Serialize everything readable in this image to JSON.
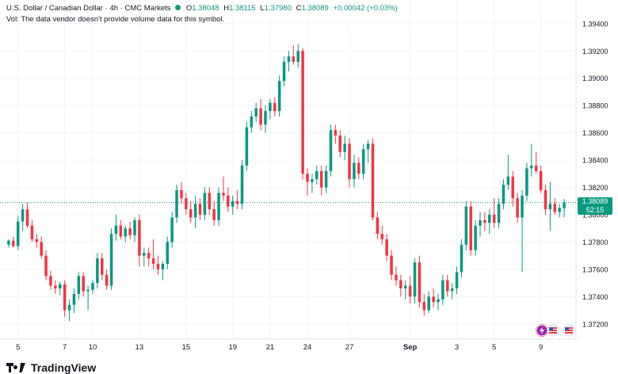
{
  "header": {
    "symbol": "U.S. Dollar / Canadian Dollar",
    "interval": "4h",
    "source": "CMC Markets",
    "open_label": "O",
    "open": "1.38048",
    "high_label": "H",
    "high": "1.38115",
    "low_label": "L",
    "low": "1.37980",
    "close_label": "C",
    "close": "1.38089",
    "change": "+0.00042 (+0.03%)",
    "volume_note": "Vol: The data vendor doesn't provide volume data for this symbol."
  },
  "price_tag": {
    "price": "1.38089",
    "countdown": "52:15"
  },
  "branding": {
    "logo_text": "TradingView"
  },
  "colors": {
    "up": "#089981",
    "down": "#f23645",
    "grid": "#f0f3fa",
    "current_line": "#089981"
  },
  "icons": [
    "tradingview-logo-icon",
    "lightning-icon",
    "flag-icon"
  ],
  "chart_data": {
    "type": "candlestick",
    "title": "U.S. Dollar / Canadian Dollar · 4h · CMC Markets",
    "xlabel": "",
    "ylabel": "",
    "ylim": [
      1.371,
      1.3955
    ],
    "y_ticks": [
      "1.39400",
      "1.39200",
      "1.39000",
      "1.38800",
      "1.38600",
      "1.38400",
      "1.38200",
      "1.38000",
      "1.37800",
      "1.37600",
      "1.37400",
      "1.37200"
    ],
    "x_ticks": [
      {
        "label": "5",
        "index": 2
      },
      {
        "label": "7",
        "index": 12
      },
      {
        "label": "10",
        "index": 18
      },
      {
        "label": "13",
        "index": 28
      },
      {
        "label": "15",
        "index": 38
      },
      {
        "label": "19",
        "index": 48
      },
      {
        "label": "21",
        "index": 56
      },
      {
        "label": "24",
        "index": 64
      },
      {
        "label": "27",
        "index": 73
      },
      {
        "label": "Sep",
        "index": 86
      },
      {
        "label": "3",
        "index": 96
      },
      {
        "label": "5",
        "index": 104
      },
      {
        "label": "9",
        "index": 114
      }
    ],
    "current_price": 1.38089,
    "grid": true,
    "candles": [
      [
        1.3778,
        1.3782,
        1.3776,
        1.3781
      ],
      [
        1.3781,
        1.3784,
        1.3776,
        1.3777
      ],
      [
        1.3777,
        1.3799,
        1.3774,
        1.3795
      ],
      [
        1.3795,
        1.3808,
        1.3788,
        1.3804
      ],
      [
        1.3804,
        1.3809,
        1.379,
        1.3792
      ],
      [
        1.3792,
        1.3796,
        1.378,
        1.3782
      ],
      [
        1.3782,
        1.3786,
        1.3776,
        1.378
      ],
      [
        1.378,
        1.3784,
        1.3768,
        1.377
      ],
      [
        1.377,
        1.3774,
        1.3752,
        1.3755
      ],
      [
        1.3755,
        1.3759,
        1.3745,
        1.3748
      ],
      [
        1.3748,
        1.3752,
        1.3742,
        1.3746
      ],
      [
        1.3746,
        1.3751,
        1.3741,
        1.3749
      ],
      [
        1.3749,
        1.3752,
        1.3725,
        1.373
      ],
      [
        1.373,
        1.3738,
        1.3722,
        1.3734
      ],
      [
        1.3734,
        1.3746,
        1.3728,
        1.3742
      ],
      [
        1.3742,
        1.3758,
        1.3738,
        1.3755
      ],
      [
        1.3755,
        1.3758,
        1.374,
        1.3744
      ],
      [
        1.3744,
        1.3748,
        1.373,
        1.3745
      ],
      [
        1.3745,
        1.3752,
        1.3742,
        1.375
      ],
      [
        1.375,
        1.3772,
        1.3746,
        1.3768
      ],
      [
        1.3768,
        1.3772,
        1.3752,
        1.3756
      ],
      [
        1.3756,
        1.376,
        1.3745,
        1.3748
      ],
      [
        1.3748,
        1.379,
        1.3745,
        1.3786
      ],
      [
        1.3786,
        1.38,
        1.3781,
        1.3792
      ],
      [
        1.3792,
        1.3796,
        1.3782,
        1.3784
      ],
      [
        1.3784,
        1.3792,
        1.378,
        1.379
      ],
      [
        1.379,
        1.3795,
        1.3782,
        1.3785
      ],
      [
        1.3785,
        1.3798,
        1.378,
        1.3796
      ],
      [
        1.3796,
        1.38,
        1.3762,
        1.377
      ],
      [
        1.377,
        1.3776,
        1.3762,
        1.3772
      ],
      [
        1.3772,
        1.3776,
        1.3762,
        1.3768
      ],
      [
        1.3768,
        1.3782,
        1.376,
        1.3764
      ],
      [
        1.3764,
        1.377,
        1.3756,
        1.376
      ],
      [
        1.376,
        1.3766,
        1.3752,
        1.3764
      ],
      [
        1.3764,
        1.3784,
        1.376,
        1.378
      ],
      [
        1.378,
        1.3802,
        1.3776,
        1.3798
      ],
      [
        1.3798,
        1.3822,
        1.3794,
        1.3818
      ],
      [
        1.3818,
        1.3824,
        1.3808,
        1.3812
      ],
      [
        1.3812,
        1.3816,
        1.38,
        1.3804
      ],
      [
        1.3804,
        1.381,
        1.3794,
        1.3798
      ],
      [
        1.3798,
        1.3814,
        1.379,
        1.3808
      ],
      [
        1.3808,
        1.3812,
        1.3796,
        1.38
      ],
      [
        1.38,
        1.382,
        1.3796,
        1.3816
      ],
      [
        1.3816,
        1.382,
        1.38,
        1.3804
      ],
      [
        1.3804,
        1.381,
        1.3792,
        1.3796
      ],
      [
        1.3796,
        1.382,
        1.3792,
        1.3816
      ],
      [
        1.3816,
        1.3828,
        1.381,
        1.3814
      ],
      [
        1.3814,
        1.382,
        1.3802,
        1.3806
      ],
      [
        1.3806,
        1.3814,
        1.38,
        1.381
      ],
      [
        1.381,
        1.3818,
        1.3804,
        1.3808
      ],
      [
        1.3808,
        1.384,
        1.3804,
        1.3836
      ],
      [
        1.3836,
        1.3868,
        1.3832,
        1.3864
      ],
      [
        1.3864,
        1.3876,
        1.386,
        1.3872
      ],
      [
        1.3872,
        1.3882,
        1.3868,
        1.3878
      ],
      [
        1.3878,
        1.3885,
        1.3862,
        1.3866
      ],
      [
        1.3866,
        1.388,
        1.386,
        1.3876
      ],
      [
        1.3876,
        1.3885,
        1.387,
        1.3882
      ],
      [
        1.3882,
        1.3886,
        1.3872,
        1.3876
      ],
      [
        1.3876,
        1.3902,
        1.3872,
        1.3898
      ],
      [
        1.3898,
        1.3916,
        1.3894,
        1.3912
      ],
      [
        1.3912,
        1.392,
        1.3905,
        1.3916
      ],
      [
        1.3916,
        1.3924,
        1.391,
        1.3912
      ],
      [
        1.3912,
        1.3925,
        1.3908,
        1.392
      ],
      [
        1.392,
        1.3922,
        1.3826,
        1.383
      ],
      [
        1.383,
        1.3834,
        1.3814,
        1.3824
      ],
      [
        1.3824,
        1.383,
        1.3816,
        1.3826
      ],
      [
        1.3826,
        1.3836,
        1.3822,
        1.3832
      ],
      [
        1.3832,
        1.3836,
        1.3814,
        1.382
      ],
      [
        1.382,
        1.3836,
        1.3816,
        1.3832
      ],
      [
        1.3832,
        1.3866,
        1.3828,
        1.3862
      ],
      [
        1.3862,
        1.3866,
        1.3852,
        1.3858
      ],
      [
        1.3858,
        1.3862,
        1.3842,
        1.3846
      ],
      [
        1.3846,
        1.3858,
        1.384,
        1.3852
      ],
      [
        1.3852,
        1.3856,
        1.382,
        1.3826
      ],
      [
        1.3826,
        1.3844,
        1.382,
        1.3838
      ],
      [
        1.3838,
        1.3842,
        1.3826,
        1.383
      ],
      [
        1.383,
        1.3852,
        1.3826,
        1.3848
      ],
      [
        1.3848,
        1.3855,
        1.3838,
        1.3852
      ],
      [
        1.3852,
        1.3856,
        1.3796,
        1.3798
      ],
      [
        1.3798,
        1.3802,
        1.3782,
        1.3786
      ],
      [
        1.3786,
        1.3792,
        1.3778,
        1.3782
      ],
      [
        1.3782,
        1.3786,
        1.3766,
        1.377
      ],
      [
        1.377,
        1.3774,
        1.3752,
        1.3756
      ],
      [
        1.3756,
        1.3762,
        1.3748,
        1.3752
      ],
      [
        1.3752,
        1.3756,
        1.374,
        1.3746
      ],
      [
        1.3746,
        1.3752,
        1.3738,
        1.3748
      ],
      [
        1.3748,
        1.3755,
        1.3735,
        1.374
      ],
      [
        1.374,
        1.3768,
        1.3735,
        1.3765
      ],
      [
        1.3765,
        1.377,
        1.3732,
        1.3736
      ],
      [
        1.3736,
        1.3742,
        1.3726,
        1.373
      ],
      [
        1.373,
        1.3744,
        1.3728,
        1.374
      ],
      [
        1.374,
        1.3746,
        1.3732,
        1.3736
      ],
      [
        1.3736,
        1.3742,
        1.373,
        1.3738
      ],
      [
        1.3738,
        1.3756,
        1.3734,
        1.3752
      ],
      [
        1.3752,
        1.3756,
        1.374,
        1.3744
      ],
      [
        1.3744,
        1.375,
        1.3738,
        1.3746
      ],
      [
        1.3746,
        1.3762,
        1.3742,
        1.3758
      ],
      [
        1.3758,
        1.3782,
        1.3754,
        1.3778
      ],
      [
        1.3778,
        1.381,
        1.3774,
        1.3806
      ],
      [
        1.3806,
        1.381,
        1.377,
        1.3774
      ],
      [
        1.3774,
        1.3796,
        1.377,
        1.3792
      ],
      [
        1.3792,
        1.3802,
        1.3784,
        1.3796
      ],
      [
        1.3796,
        1.3802,
        1.3788,
        1.3794
      ],
      [
        1.3794,
        1.3804,
        1.3786,
        1.38
      ],
      [
        1.38,
        1.3812,
        1.379,
        1.3794
      ],
      [
        1.3794,
        1.3812,
        1.379,
        1.3808
      ],
      [
        1.3808,
        1.3826,
        1.3804,
        1.3822
      ],
      [
        1.3822,
        1.3844,
        1.3818,
        1.3828
      ],
      [
        1.3828,
        1.3832,
        1.3806,
        1.3812
      ],
      [
        1.3812,
        1.3816,
        1.3794,
        1.3798
      ],
      [
        1.3798,
        1.3818,
        1.3758,
        1.3814
      ],
      [
        1.3814,
        1.3838,
        1.381,
        1.3834
      ],
      [
        1.3834,
        1.3852,
        1.3828,
        1.3836
      ],
      [
        1.3836,
        1.3846,
        1.383,
        1.3832
      ],
      [
        1.3832,
        1.3836,
        1.3816,
        1.3818
      ],
      [
        1.3818,
        1.3822,
        1.38,
        1.3804
      ],
      [
        1.3804,
        1.3824,
        1.3788,
        1.3808
      ],
      [
        1.3808,
        1.3812,
        1.38,
        1.3802
      ],
      [
        1.3802,
        1.3808,
        1.3798,
        1.3805
      ],
      [
        1.38048,
        1.38115,
        1.3798,
        1.38089
      ]
    ]
  }
}
